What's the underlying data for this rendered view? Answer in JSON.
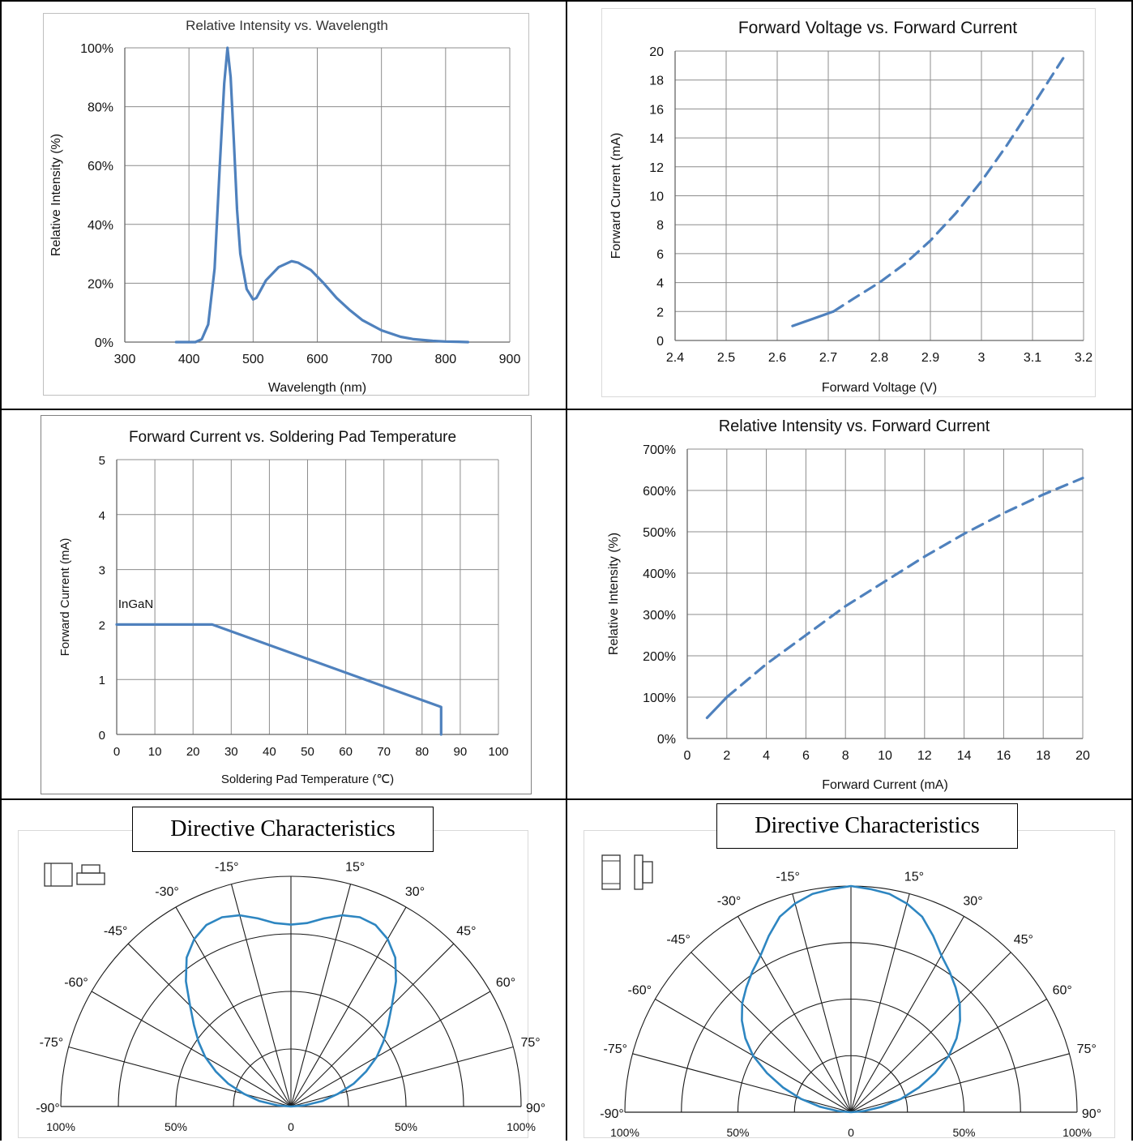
{
  "charts": [
    {
      "id": "spectrum",
      "type": "line",
      "title": "Relative Intensity vs. Wavelength",
      "xlabel": "Wavelength (nm)",
      "ylabel": "Relative Intensity (%)",
      "xlim": [
        300,
        900
      ],
      "ylim": [
        0,
        100
      ],
      "x_ticks": [
        "300",
        "400",
        "500",
        "600",
        "700",
        "800",
        "900"
      ],
      "y_ticks": [
        "0%",
        "20%",
        "40%",
        "60%",
        "80%",
        "100%"
      ],
      "grid": true,
      "line_color": "#4f81bd",
      "x": [
        380,
        410,
        420,
        430,
        440,
        448,
        455,
        460,
        465,
        470,
        475,
        480,
        490,
        500,
        505,
        510,
        520,
        540,
        560,
        570,
        590,
        610,
        630,
        650,
        670,
        700,
        730,
        750,
        780,
        800,
        820,
        835
      ],
      "y": [
        0,
        0,
        1,
        6,
        25,
        60,
        88,
        100,
        90,
        68,
        45,
        30,
        18,
        14.5,
        15,
        17,
        21,
        25.5,
        27.5,
        27,
        24.5,
        20,
        15,
        11,
        7.5,
        4,
        1.8,
        1,
        0.4,
        0.2,
        0.1,
        0
      ]
    },
    {
      "id": "vf_if",
      "type": "line",
      "title": "Forward Voltage vs. Forward Current",
      "xlabel": "Forward Voltage (V)",
      "ylabel": "Forward Current  (mA)",
      "xlim": [
        2.4,
        3.2
      ],
      "ylim": [
        0,
        20
      ],
      "x_ticks": [
        "2.4",
        "2.5",
        "2.6",
        "2.7",
        "2.8",
        "2.9",
        "3",
        "3.1",
        "3.2"
      ],
      "y_ticks": [
        "0",
        "2",
        "4",
        "6",
        "8",
        "10",
        "12",
        "14",
        "16",
        "18",
        "20"
      ],
      "grid": true,
      "line_color": "#4f81bd",
      "series": [
        {
          "style": "solid",
          "x": [
            2.63,
            2.67,
            2.71
          ],
          "y": [
            1,
            1.5,
            2
          ]
        },
        {
          "style": "dashed",
          "x": [
            2.71,
            2.75,
            2.8,
            2.85,
            2.9,
            2.95,
            3.0,
            3.05,
            3.1,
            3.16
          ],
          "y": [
            2,
            2.9,
            4,
            5.3,
            6.9,
            8.8,
            11,
            13.5,
            16.2,
            19.5
          ]
        }
      ]
    },
    {
      "id": "derating",
      "type": "line",
      "title": "Forward Current  vs. Soldering Pad Temperature",
      "xlabel": "Soldering Pad Temperature (℃)",
      "ylabel": "Forward  Current  (mA)",
      "xlim": [
        0,
        100
      ],
      "ylim": [
        0,
        5
      ],
      "x_ticks": [
        "0",
        "10",
        "20",
        "30",
        "40",
        "50",
        "60",
        "70",
        "80",
        "90",
        "100"
      ],
      "y_ticks": [
        "0",
        "1",
        "2",
        "3",
        "4",
        "5"
      ],
      "grid": true,
      "line_color": "#4f81bd",
      "annotation": "InGaN",
      "x": [
        0,
        25,
        85,
        85
      ],
      "y": [
        2,
        2,
        0.5,
        0
      ]
    },
    {
      "id": "iv_if",
      "type": "line",
      "title": "Relative Intensity vs. Forward Current",
      "xlabel": "Forward Current (mA)",
      "ylabel": "Relative Intensity (%)",
      "xlim": [
        0,
        20
      ],
      "ylim": [
        0,
        700
      ],
      "x_ticks": [
        "0",
        "2",
        "4",
        "6",
        "8",
        "10",
        "12",
        "14",
        "16",
        "18",
        "20"
      ],
      "y_ticks": [
        "0%",
        "100%",
        "200%",
        "300%",
        "400%",
        "500%",
        "600%",
        "700%"
      ],
      "grid": true,
      "line_color": "#4f81bd",
      "series": [
        {
          "style": "solid",
          "x": [
            1,
            1.5,
            2
          ],
          "y": [
            50,
            75,
            100
          ]
        },
        {
          "style": "dashed",
          "x": [
            2,
            4,
            6,
            8,
            10,
            12,
            14,
            16,
            18,
            20
          ],
          "y": [
            100,
            180,
            250,
            320,
            380,
            440,
            495,
            545,
            590,
            630
          ]
        }
      ]
    },
    {
      "id": "polar_left",
      "type": "polar",
      "title": "Directive Characteristics",
      "angle_labels": [
        "-90°",
        "-75°",
        "-60°",
        "-45°",
        "-30°",
        "-15°",
        "15°",
        "30°",
        "45°",
        "60°",
        "75°",
        "90°"
      ],
      "radial_labels": [
        "100%",
        "50%",
        "0",
        "50%",
        "100%"
      ],
      "line_color": "#2e86c1",
      "angles": [
        0,
        5,
        10,
        15,
        20,
        25,
        30,
        35,
        40,
        45,
        50,
        55,
        60,
        65,
        70,
        75,
        80,
        85,
        90
      ],
      "values": [
        0.79,
        0.8,
        0.83,
        0.86,
        0.875,
        0.87,
        0.84,
        0.79,
        0.71,
        0.62,
        0.55,
        0.49,
        0.43,
        0.36,
        0.29,
        0.21,
        0.14,
        0.06,
        0.0
      ]
    },
    {
      "id": "polar_right",
      "type": "polar",
      "title": "Directive Characteristics",
      "angle_labels": [
        "-90°",
        "-75°",
        "-60°",
        "-45°",
        "-30°",
        "-15°",
        "15°",
        "30°",
        "45°",
        "60°",
        "75°",
        "90°"
      ],
      "radial_labels": [
        "100%",
        "50%",
        "0",
        "50%",
        "100%"
      ],
      "line_color": "#2e86c1",
      "angles": [
        0,
        5,
        10,
        15,
        20,
        25,
        30,
        35,
        40,
        45,
        50,
        55,
        60,
        65,
        70,
        75,
        80,
        85,
        90
      ],
      "values": [
        1.0,
        0.99,
        0.98,
        0.955,
        0.92,
        0.86,
        0.8,
        0.76,
        0.72,
        0.68,
        0.63,
        0.57,
        0.5,
        0.41,
        0.32,
        0.23,
        0.14,
        0.06,
        0.0
      ]
    }
  ]
}
